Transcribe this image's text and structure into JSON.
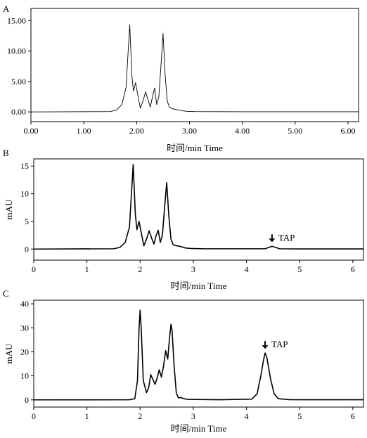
{
  "chart_data": [
    {
      "panel": "A",
      "type": "line",
      "xlabel": "时间/min Time",
      "ylabel": "",
      "xlim": [
        0,
        6.2
      ],
      "ylim": [
        -1.6,
        17.0
      ],
      "xticks": [
        "0.00",
        "1.00",
        "2.00",
        "3.00",
        "4.00",
        "5.00",
        "6.00"
      ],
      "yticks": [
        "0.00",
        "5.00",
        "10.00",
        "15.00"
      ],
      "x": [
        0,
        1.5,
        1.62,
        1.72,
        1.8,
        1.84,
        1.87,
        1.91,
        1.94,
        1.98,
        2.02,
        2.07,
        2.12,
        2.17,
        2.22,
        2.26,
        2.3,
        2.34,
        2.38,
        2.42,
        2.46,
        2.5,
        2.54,
        2.58,
        2.62,
        2.68,
        2.75,
        2.85,
        2.95,
        3.1,
        4.0,
        5.0,
        6.2
      ],
      "y": [
        0,
        0.05,
        0.3,
        1.2,
        4.0,
        10.0,
        14.3,
        6.0,
        3.4,
        4.8,
        2.9,
        0.6,
        1.8,
        3.3,
        1.9,
        0.8,
        2.5,
        3.9,
        1.2,
        2.5,
        7.5,
        12.9,
        6.0,
        1.8,
        0.8,
        0.5,
        0.4,
        0.2,
        0.1,
        0.05,
        0.02,
        0.02,
        0.02
      ],
      "annotations": []
    },
    {
      "panel": "B",
      "type": "line",
      "xlabel": "时间/min Time",
      "ylabel": "mAU",
      "xlim": [
        0,
        6.2
      ],
      "ylim": [
        -2,
        16.3
      ],
      "xticks": [
        "0",
        "1",
        "2",
        "3",
        "4",
        "5",
        "6"
      ],
      "yticks": [
        "0",
        "5",
        "10",
        "15"
      ],
      "x": [
        0,
        1.5,
        1.62,
        1.72,
        1.8,
        1.84,
        1.87,
        1.91,
        1.94,
        1.98,
        2.02,
        2.07,
        2.12,
        2.17,
        2.22,
        2.26,
        2.3,
        2.34,
        2.38,
        2.42,
        2.46,
        2.5,
        2.54,
        2.58,
        2.62,
        2.68,
        2.75,
        2.85,
        2.95,
        3.2,
        4.35,
        4.42,
        4.48,
        4.55,
        4.62,
        5.0,
        6.2
      ],
      "y": [
        0,
        0.05,
        0.3,
        1.2,
        4.0,
        10.5,
        15.3,
        6.3,
        3.5,
        5.0,
        3.0,
        0.6,
        1.8,
        3.3,
        1.9,
        0.9,
        2.4,
        3.4,
        1.2,
        2.6,
        7.5,
        12.0,
        6.0,
        1.8,
        0.8,
        0.6,
        0.5,
        0.2,
        0.1,
        0.05,
        0.05,
        0.3,
        0.5,
        0.3,
        0.05,
        0.02,
        0.02
      ],
      "annotations": [
        {
          "text": "TAP",
          "x": 4.48,
          "y": 0.5
        }
      ]
    },
    {
      "panel": "C",
      "type": "line",
      "xlabel": "时间/min Time",
      "ylabel": "mAU",
      "xlim": [
        0,
        6.2
      ],
      "ylim": [
        -3,
        41.5
      ],
      "xticks": [
        "0",
        "1",
        "2",
        "3",
        "4",
        "5",
        "6"
      ],
      "yticks": [
        "0",
        "10",
        "20",
        "30",
        "40"
      ],
      "x": [
        0,
        1.8,
        1.9,
        1.95,
        1.98,
        2.0,
        2.02,
        2.06,
        2.12,
        2.16,
        2.2,
        2.25,
        2.28,
        2.32,
        2.36,
        2.4,
        2.44,
        2.48,
        2.52,
        2.55,
        2.58,
        2.6,
        2.64,
        2.68,
        2.72,
        2.76,
        2.82,
        2.9,
        3.5,
        4.1,
        4.2,
        4.27,
        4.32,
        4.35,
        4.38,
        4.45,
        4.52,
        4.6,
        4.8,
        5.0,
        6.2
      ],
      "y": [
        0,
        0.05,
        0.5,
        8.0,
        30.0,
        37.3,
        30.0,
        8.0,
        3.0,
        5.0,
        10.5,
        8.0,
        6.5,
        9.0,
        12.5,
        9.5,
        14.0,
        20.5,
        17.0,
        25.0,
        31.5,
        29.0,
        14.0,
        3.0,
        0.8,
        1.0,
        0.5,
        0.2,
        0.05,
        0.3,
        2.5,
        10.0,
        16.5,
        19.5,
        18.0,
        9.0,
        2.5,
        0.5,
        0.1,
        0.05,
        0.05
      ],
      "annotations": [
        {
          "text": "TAP",
          "x": 4.35,
          "y": 19.5
        }
      ]
    }
  ]
}
